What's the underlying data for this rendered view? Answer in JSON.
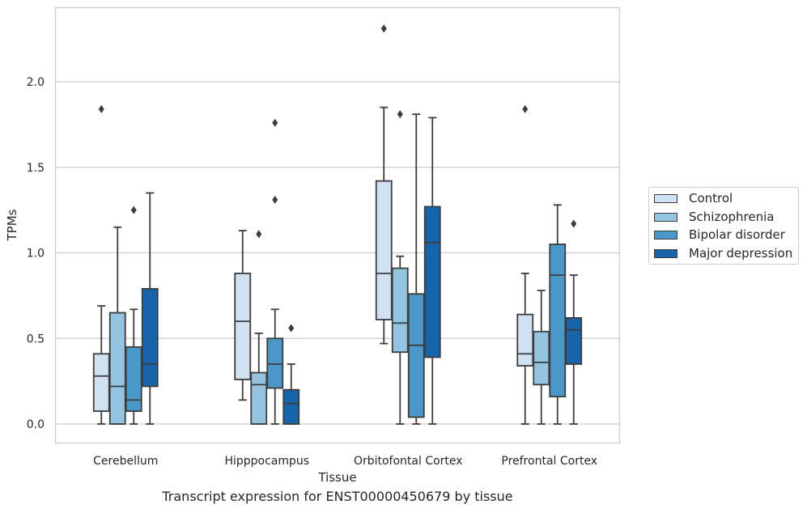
{
  "caption": "Transcript expression for ENST00000450679 by tissue",
  "chart_data": {
    "type": "box",
    "xlabel": "Tissue",
    "ylabel": "TPMs",
    "ylim": [
      -0.11,
      2.43
    ],
    "yticks": [
      "0.0",
      "0.5",
      "1.0",
      "1.5",
      "2.0"
    ],
    "grid": true,
    "legend_position": "right",
    "categories": [
      "Cerebellum",
      "Hipppocampus",
      "Orbitofontal Cortex",
      "Prefrontal Cortex"
    ],
    "series": [
      {
        "name": "Control",
        "color": "#d0e1f2",
        "boxes": [
          {
            "whislo": 0.0,
            "q1": 0.075,
            "med": 0.28,
            "q3": 0.41,
            "whishi": 0.69,
            "fliers": [
              1.84
            ]
          },
          {
            "whislo": 0.14,
            "q1": 0.26,
            "med": 0.6,
            "q3": 0.88,
            "whishi": 1.13,
            "fliers": []
          },
          {
            "whislo": 0.47,
            "q1": 0.61,
            "med": 0.88,
            "q3": 1.42,
            "whishi": 1.85,
            "fliers": [
              2.31
            ]
          },
          {
            "whislo": 0.0,
            "q1": 0.34,
            "med": 0.41,
            "q3": 0.64,
            "whishi": 0.88,
            "fliers": [
              1.84
            ]
          }
        ]
      },
      {
        "name": "Schizophrenia",
        "color": "#94c4df",
        "boxes": [
          {
            "whislo": 0.0,
            "q1": 0.0,
            "med": 0.22,
            "q3": 0.65,
            "whishi": 1.15,
            "fliers": []
          },
          {
            "whislo": 0.0,
            "q1": 0.0,
            "med": 0.23,
            "q3": 0.3,
            "whishi": 0.53,
            "fliers": [
              1.11
            ]
          },
          {
            "whislo": 0.0,
            "q1": 0.42,
            "med": 0.59,
            "q3": 0.91,
            "whishi": 0.98,
            "fliers": [
              1.81
            ]
          },
          {
            "whislo": 0.0,
            "q1": 0.23,
            "med": 0.36,
            "q3": 0.54,
            "whishi": 0.78,
            "fliers": []
          }
        ]
      },
      {
        "name": "Bipolar disorder",
        "color": "#4a98c9",
        "boxes": [
          {
            "whislo": 0.0,
            "q1": 0.075,
            "med": 0.14,
            "q3": 0.45,
            "whishi": 0.67,
            "fliers": [
              1.25
            ]
          },
          {
            "whislo": 0.0,
            "q1": 0.21,
            "med": 0.35,
            "q3": 0.5,
            "whishi": 0.67,
            "fliers": [
              1.31,
              1.76
            ]
          },
          {
            "whislo": 0.0,
            "q1": 0.04,
            "med": 0.46,
            "q3": 0.76,
            "whishi": 1.81,
            "fliers": []
          },
          {
            "whislo": 0.0,
            "q1": 0.16,
            "med": 0.87,
            "q3": 1.05,
            "whishi": 1.28,
            "fliers": []
          }
        ]
      },
      {
        "name": "Major depression",
        "color": "#1764ab",
        "boxes": [
          {
            "whislo": 0.0,
            "q1": 0.22,
            "med": 0.35,
            "q3": 0.79,
            "whishi": 1.35,
            "fliers": []
          },
          {
            "whislo": 0.0,
            "q1": 0.0,
            "med": 0.12,
            "q3": 0.2,
            "whishi": 0.35,
            "fliers": [
              0.56
            ]
          },
          {
            "whislo": 0.0,
            "q1": 0.39,
            "med": 1.06,
            "q3": 1.27,
            "whishi": 1.79,
            "fliers": []
          },
          {
            "whislo": 0.0,
            "q1": 0.35,
            "med": 0.55,
            "q3": 0.62,
            "whishi": 0.87,
            "fliers": [
              1.17
            ]
          }
        ]
      }
    ]
  }
}
